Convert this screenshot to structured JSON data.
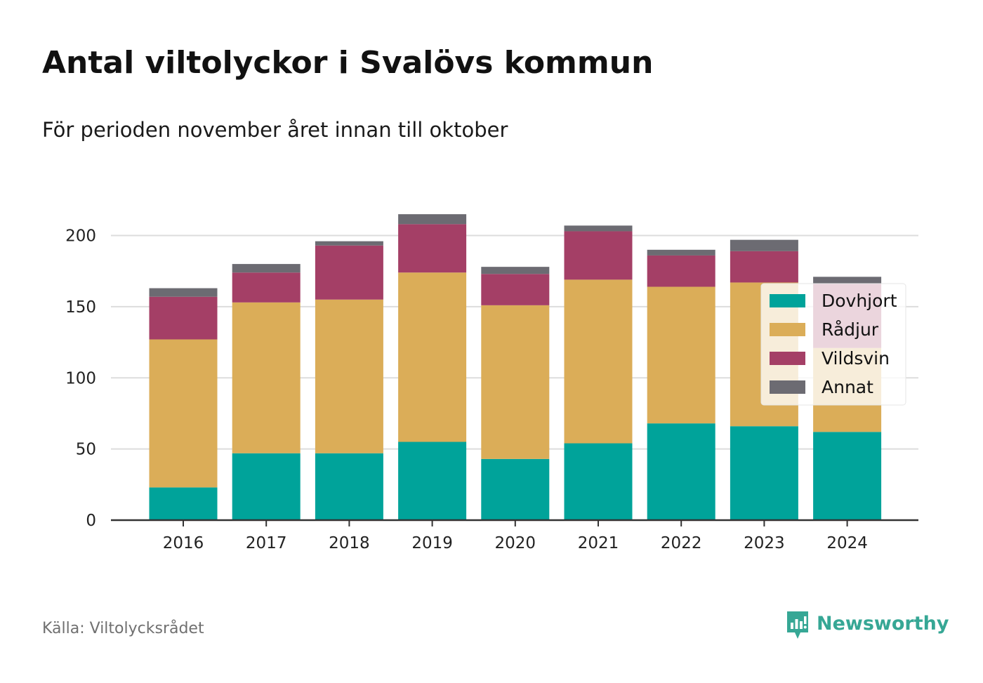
{
  "title": "Antal viltolyckor i Svalövs kommun",
  "subtitle": "För perioden november året innan till oktober",
  "source": "Källa: Viltolycksrådet",
  "brand": {
    "name": "Newsworthy",
    "icon": "newsworthy-logo-icon",
    "color": "#36a795"
  },
  "chart_data": {
    "type": "bar",
    "stacked": true,
    "categories": [
      "2016",
      "2017",
      "2018",
      "2019",
      "2020",
      "2021",
      "2022",
      "2023",
      "2024"
    ],
    "series": [
      {
        "name": "Dovhjort",
        "color": "#00a39a",
        "values": [
          23,
          47,
          47,
          55,
          43,
          54,
          68,
          66,
          62
        ]
      },
      {
        "name": "Rådjur",
        "color": "#dbad58",
        "values": [
          104,
          106,
          108,
          119,
          108,
          115,
          96,
          101,
          59
        ]
      },
      {
        "name": "Vildsvin",
        "color": "#a43f66",
        "values": [
          30,
          21,
          38,
          34,
          22,
          34,
          22,
          22,
          45
        ]
      },
      {
        "name": "Annat",
        "color": "#6c6b72",
        "values": [
          6,
          6,
          3,
          7,
          5,
          4,
          4,
          8,
          5
        ]
      }
    ],
    "ylim": [
      0,
      220
    ],
    "yticks": [
      0,
      50,
      100,
      150,
      200
    ],
    "xlabel": "",
    "ylabel": "",
    "grid": true,
    "legend": "right"
  }
}
